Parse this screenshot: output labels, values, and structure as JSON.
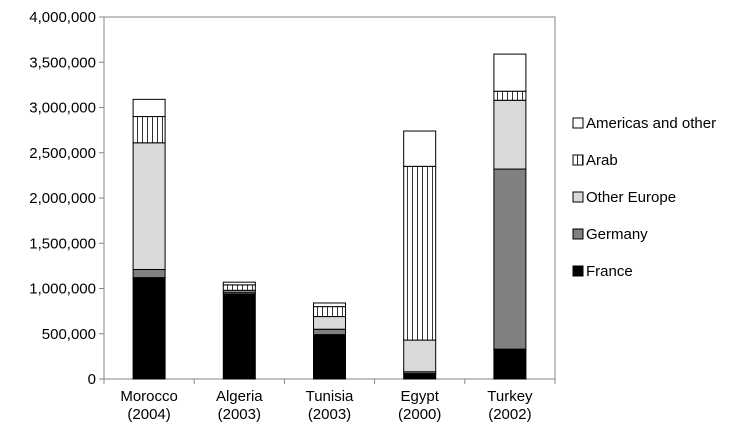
{
  "chart_data": {
    "type": "bar",
    "stacked": true,
    "categories": [
      "Morocco\n(2004)",
      "Algeria\n(2003)",
      "Tunisia\n(2003)",
      "Egypt\n(2000)",
      "Turkey\n(2002)"
    ],
    "ylim": [
      0,
      4000000
    ],
    "yticks": [
      "0",
      "500,000",
      "1,000,000",
      "1,500,000",
      "2,000,000",
      "2,500,000",
      "3,000,000",
      "3,500,000",
      "4,000,000"
    ],
    "ytick_values": [
      0,
      500000,
      1000000,
      1500000,
      2000000,
      2500000,
      3000000,
      3500000,
      4000000
    ],
    "grid": false,
    "legend_position": "right",
    "series": [
      {
        "name": "France",
        "values": [
          1120000,
          940000,
          490000,
          60000,
          330000
        ],
        "color": "#000000",
        "pattern": "solid"
      },
      {
        "name": "Germany",
        "values": [
          90000,
          20000,
          60000,
          20000,
          1990000
        ],
        "color": "#808080",
        "pattern": "solid"
      },
      {
        "name": "Other Europe",
        "values": [
          1400000,
          20000,
          140000,
          350000,
          760000
        ],
        "color": "#d9d9d9",
        "pattern": "solid"
      },
      {
        "name": "Arab",
        "values": [
          290000,
          60000,
          110000,
          1920000,
          100000
        ],
        "color": "#ffffff",
        "pattern": "vertical-lines"
      },
      {
        "name": "Americas and other",
        "values": [
          190000,
          30000,
          40000,
          390000,
          410000
        ],
        "color": "#ffffff",
        "pattern": "solid"
      }
    ]
  }
}
